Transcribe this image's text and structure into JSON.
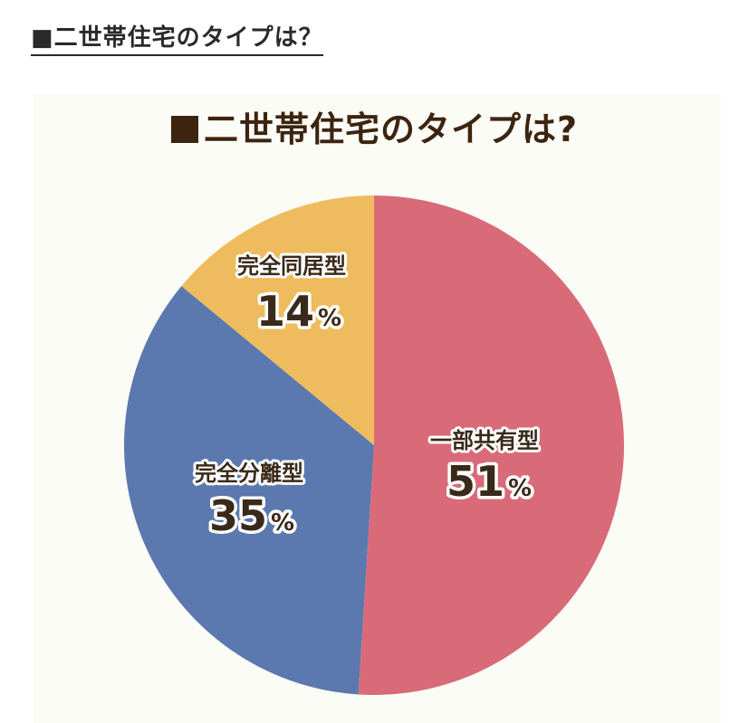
{
  "page": {
    "heading": "■二世帯住宅のタイプは？"
  },
  "chart_data": {
    "type": "pie",
    "title": "二世帯住宅のタイプは?",
    "value_suffix": "%",
    "slices": [
      {
        "label": "一部共有型",
        "value": 51,
        "display": "51",
        "color": "#d96b78"
      },
      {
        "label": "完全分離型",
        "value": 35,
        "display": "35",
        "color": "#5b79ae"
      },
      {
        "label": "完全同居型",
        "value": 14,
        "display": "14",
        "color": "#eebc5e"
      }
    ]
  }
}
